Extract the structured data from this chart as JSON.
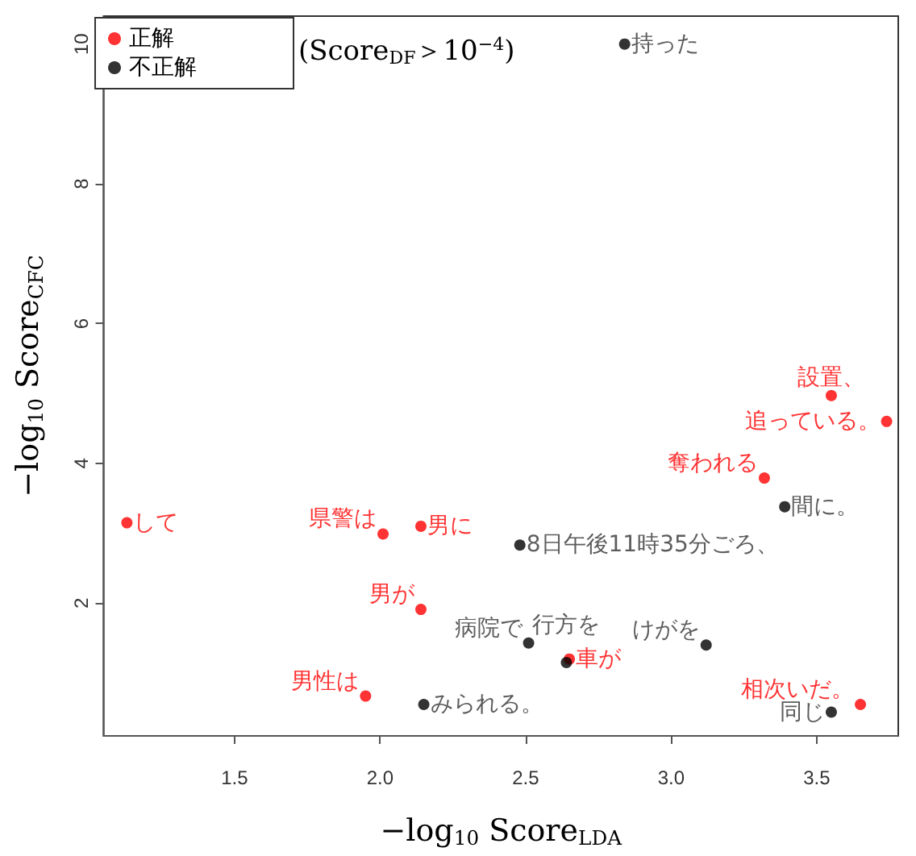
{
  "chart_data": {
    "type": "scatter",
    "xlabel": "−log$_{10}$ Score$_{LDA}$",
    "ylabel": "−log$_{10}$ Score$_{CFC}$",
    "annotations": [
      "(Score$_{DF}$＞10$^{−4}$)"
    ],
    "xlim": [
      1.05,
      3.78
    ],
    "xticks": [
      1.5,
      {
        "value": 2,
        "label": "2.0"
      },
      2.5,
      {
        "value": 3,
        "label": "3.0"
      },
      3.5
    ],
    "ylim": [
      0.1,
      10.4
    ],
    "yticks": [
      2,
      4,
      6,
      8,
      10
    ],
    "grid": false,
    "legend": "top left",
    "marker": "circle",
    "series": [
      {
        "name": "正解",
        "color": "#ff0000",
        "x": [
          1.13,
          2.01,
          2.14,
          2.14,
          1.95,
          2.65,
          3.32,
          3.55,
          3.74,
          3.65
        ],
        "values": [
          3.15,
          2.99,
          3.1,
          1.91,
          0.67,
          1.2,
          3.79,
          4.97,
          4.6,
          0.55
        ],
        "value_labels": [
          "して",
          "県警は",
          "男に",
          "男が",
          "男性は",
          "車が",
          "奪われる",
          "設置、",
          "追っている。",
          "相次いだ。"
        ]
      },
      {
        "name": "不正解",
        "color": "#000000",
        "x": [
          2.84,
          2.48,
          2.15,
          2.51,
          2.64,
          3.12,
          3.39,
          3.55
        ],
        "values": [
          10.0,
          2.83,
          0.55,
          1.43,
          1.15,
          1.4,
          3.38,
          0.44
        ],
        "value_labels": [
          "持った",
          "8日午後11時35分ごろ、",
          "みられる。",
          "病院で",
          "行方を",
          "けがを",
          "間に。",
          "同じ"
        ]
      }
    ]
  }
}
